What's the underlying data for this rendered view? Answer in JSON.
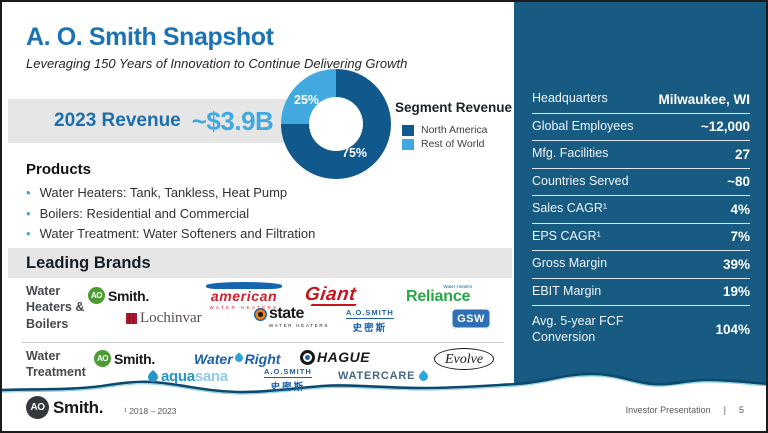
{
  "header": {
    "title": "A. O. Smith Snapshot",
    "subtitle": "Leveraging 150 Years of Innovation to Continue Delivering Growth"
  },
  "revenue": {
    "label": "2023 Revenue",
    "value": "~$3.9B"
  },
  "chart_data": {
    "type": "pie",
    "donut": true,
    "title": "Segment Revenue",
    "labels": [
      "North America",
      "Rest of World"
    ],
    "values": [
      75,
      25
    ],
    "value_labels": [
      "75%",
      "25%"
    ],
    "colors": [
      "#11598C",
      "#41A9E0"
    ],
    "legend_position": "right"
  },
  "products": {
    "heading": "Products",
    "items": [
      "Water Heaters: Tank, Tankless, Heat Pump",
      "Boilers: Residential and Commercial",
      "Water Treatment: Water Softeners and Filtration"
    ]
  },
  "brands": {
    "heading": "Leading Brands",
    "category1": "Water Heaters & Boilers",
    "category2": "Water Treatment",
    "logos": {
      "aosmith": {
        "badge": "AO",
        "text": "Smith."
      },
      "american": {
        "text": "american",
        "sub": "WATER HEATERS"
      },
      "giant": {
        "text": "Giant"
      },
      "reliance": {
        "text": "Reliance",
        "sub": "Water Heaters"
      },
      "lochinvar": {
        "text": "Lochinvar"
      },
      "state": {
        "text": "state",
        "sub": "WATER HEATERS"
      },
      "aosmith_cn": {
        "line1": "A.O.SMITH",
        "line2": "史密斯"
      },
      "gsw": {
        "text": "GSW"
      },
      "waterright": {
        "word1": "Water",
        "word2": "Right"
      },
      "hague": {
        "text": "HAGUE"
      },
      "evolve": {
        "text": "Evolve"
      },
      "aquasana": {
        "word1": "aqua",
        "word2": "sana"
      },
      "watercare": {
        "word1": "WATER",
        "word2": "CARE"
      }
    }
  },
  "stats": {
    "rows": [
      {
        "label": "Headquarters",
        "value": "Milwaukee, WI"
      },
      {
        "label": "Global Employees",
        "value": "~12,000"
      },
      {
        "label": "Mfg. Facilities",
        "value": "27"
      },
      {
        "label": "Countries Served",
        "value": "~80"
      },
      {
        "label": "Sales CAGR¹",
        "value": "4%"
      },
      {
        "label": "EPS CAGR¹",
        "value": "7%"
      },
      {
        "label": "Gross Margin",
        "value": "39%"
      },
      {
        "label": "EBIT Margin",
        "value": "19%"
      },
      {
        "label": "Avg. 5-year FCF Conversion",
        "value": "104%"
      }
    ]
  },
  "footer": {
    "logo_badge": "AO",
    "logo_text": "Smith.",
    "footnote": "¹ 2018 – 2023",
    "doc_label": "Investor Presentation",
    "divider": "|",
    "page": "5"
  },
  "colors": {
    "panel": "#175A82",
    "title_blue": "#1C73B4",
    "accent_light": "#3FA9E0"
  }
}
